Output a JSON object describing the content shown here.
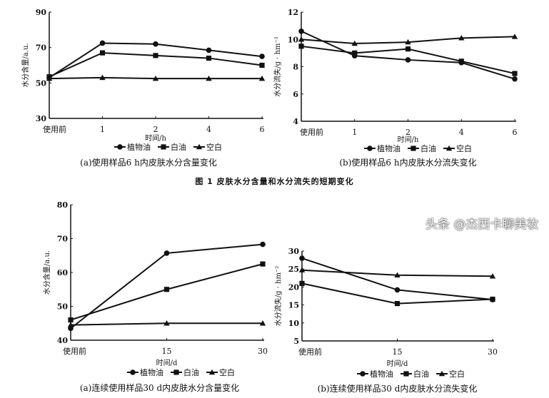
{
  "figure_caption": "图 1   皮肤水分含量和水分流失的短期变化",
  "watermark": "头条 @杰西卡聊美妆",
  "colors": {
    "line": "#111111",
    "background": "#ffffff"
  },
  "chart_data": [
    {
      "type": "line",
      "title": "(a)使用样品6 h内皮肤水分含量变化",
      "xlabel": "时间/h",
      "ylabel": "水分含量/a.u.",
      "categories": [
        "使用前",
        "1",
        "2",
        "4",
        "6"
      ],
      "yticks": [
        "30",
        "50",
        "70",
        "90"
      ],
      "ylim": [
        30,
        90
      ],
      "legend": "bottom",
      "series": [
        {
          "name": "植物油",
          "marker": "circle",
          "values": [
            53,
            72.5,
            72,
            68.5,
            65
          ]
        },
        {
          "name": "白油",
          "marker": "square",
          "values": [
            53.5,
            67,
            65.5,
            64,
            60
          ]
        },
        {
          "name": "空白",
          "marker": "triangle",
          "values": [
            52.5,
            53,
            52.5,
            52.5,
            52.5
          ]
        }
      ]
    },
    {
      "type": "line",
      "title": "(b)使用样品6 h内皮肤水分流失变化",
      "xlabel": "时间/h",
      "ylabel": "水分流失/g · hm⁻²",
      "categories": [
        "使用前",
        "1",
        "2",
        "4",
        "6"
      ],
      "yticks": [
        "4",
        "6",
        "8",
        "10",
        "12"
      ],
      "ylim": [
        4,
        12
      ],
      "legend": "bottom",
      "series": [
        {
          "name": "植物油",
          "marker": "circle",
          "values": [
            10.6,
            8.8,
            8.5,
            8.3,
            7.1
          ]
        },
        {
          "name": "白油",
          "marker": "square",
          "values": [
            9.5,
            9.0,
            9.3,
            8.4,
            7.5
          ]
        },
        {
          "name": "空白",
          "marker": "triangle",
          "values": [
            10.0,
            9.7,
            9.8,
            10.1,
            10.2
          ]
        }
      ]
    },
    {
      "type": "line",
      "title": "(a)连续使用样品30 d内皮肤水分含量变化",
      "xlabel": "时间/d",
      "ylabel": "水分含量/a.u.",
      "categories": [
        "使用前",
        "15",
        "30"
      ],
      "yticks": [
        "40",
        "50",
        "60",
        "70",
        "80"
      ],
      "ylim": [
        40,
        80
      ],
      "legend": "bottom",
      "series": [
        {
          "name": "植物油",
          "marker": "circle",
          "values": [
            43.5,
            65.7,
            68.3
          ]
        },
        {
          "name": "白油",
          "marker": "square",
          "values": [
            46,
            55,
            62.5
          ]
        },
        {
          "name": "空白",
          "marker": "triangle",
          "values": [
            44.5,
            45,
            45
          ]
        }
      ]
    },
    {
      "type": "line",
      "title": "(b)连续使用样品30 d内皮肤水分流失变化",
      "xlabel": "时间/d",
      "ylabel": "水分流失/g · hm⁻²",
      "categories": [
        "使用前",
        "15",
        "30"
      ],
      "yticks": [
        "5",
        "10",
        "15",
        "20",
        "25",
        "30"
      ],
      "ylim": [
        5,
        30
      ],
      "legend": "bottom",
      "series": [
        {
          "name": "植物油",
          "marker": "circle",
          "values": [
            28,
            19.2,
            16.5
          ]
        },
        {
          "name": "白油",
          "marker": "square",
          "values": [
            21,
            15.4,
            16.6
          ]
        },
        {
          "name": "空白",
          "marker": "triangle",
          "values": [
            24.7,
            23.3,
            23
          ]
        }
      ]
    }
  ]
}
